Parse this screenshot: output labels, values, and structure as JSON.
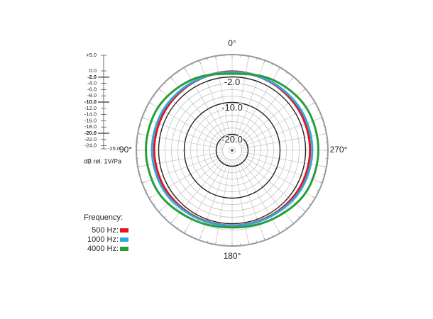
{
  "chart_data": {
    "type": "polar",
    "unit_label": "dB rel. 1V/Pa",
    "legend_title": "Frequency:",
    "theta": [
      0,
      30,
      60,
      90,
      120,
      150,
      180,
      210,
      240,
      270,
      300,
      330
    ],
    "series": [
      {
        "name": "500 Hz:",
        "color": "#e8141b",
        "values": [
          -0.3,
          -0.5,
          -0.6,
          -0.6,
          -0.8,
          -1.2,
          -1.4,
          -1.2,
          -0.8,
          -0.6,
          -0.6,
          -0.5
        ]
      },
      {
        "name": "1000 Hz:",
        "color": "#29abe2",
        "values": [
          -0.5,
          -0.3,
          0,
          0.1,
          -0.2,
          -1,
          -1.3,
          -1,
          -0.2,
          0.1,
          0,
          -0.3
        ]
      },
      {
        "name": "4000 Hz:",
        "color": "#2a9d3a",
        "values": [
          -1,
          0.5,
          1.8,
          2,
          1.6,
          0,
          -0.8,
          0,
          1.6,
          2,
          1.8,
          0.5
        ]
      }
    ],
    "rlim": [
      -25,
      5
    ],
    "rticks": [
      {
        "value": 5,
        "label": "+5.0"
      },
      {
        "value": 0,
        "label": "0.0"
      },
      {
        "value": -2,
        "label": "-2.0"
      },
      {
        "value": -4,
        "label": "-4.0"
      },
      {
        "value": -6,
        "label": "-6.0"
      },
      {
        "value": -8,
        "label": "-8.0"
      },
      {
        "value": -10,
        "label": "-10.0"
      },
      {
        "value": -12,
        "label": "-12.0"
      },
      {
        "value": -14,
        "label": "-14.0"
      },
      {
        "value": -16,
        "label": "-16.0"
      },
      {
        "value": -18,
        "label": "-18.0"
      },
      {
        "value": -20,
        "label": "-20.0"
      },
      {
        "value": -22,
        "label": "-22.0"
      },
      {
        "value": -24,
        "label": "-24.0"
      },
      {
        "value": -25,
        "label": "-25.0"
      }
    ],
    "bold_rticks": [
      -2,
      -10,
      -20
    ],
    "thetaticks": [
      {
        "value": 0,
        "label": "0°"
      },
      {
        "value": 90,
        "label": "90°"
      },
      {
        "value": 180,
        "label": "180°"
      },
      {
        "value": 270,
        "label": "270°"
      }
    ]
  }
}
